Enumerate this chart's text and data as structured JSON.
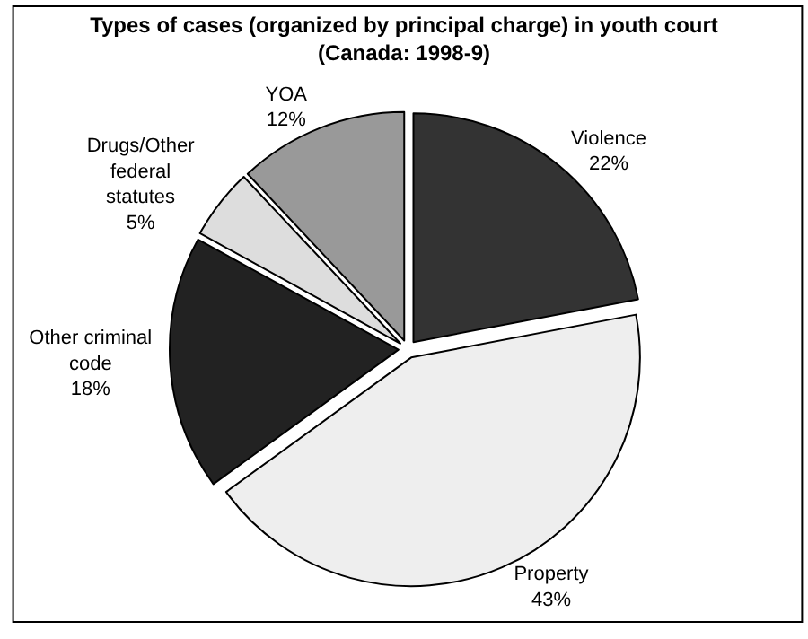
{
  "chart_data": {
    "type": "pie",
    "title": "Types of cases (organized by principal charge) in youth court\n(Canada: 1998-9)",
    "categories": [
      "Violence",
      "Property",
      "Other criminal code",
      "Drugs/Other federal statutes",
      "YOA"
    ],
    "values": [
      22,
      43,
      18,
      5,
      12
    ],
    "value_labels": [
      "22%",
      "43%",
      "18%",
      "5%",
      "12%"
    ],
    "colors": [
      "#333333",
      "#eeeeee",
      "#222222",
      "#dddddd",
      "#999999"
    ],
    "legend": false
  }
}
